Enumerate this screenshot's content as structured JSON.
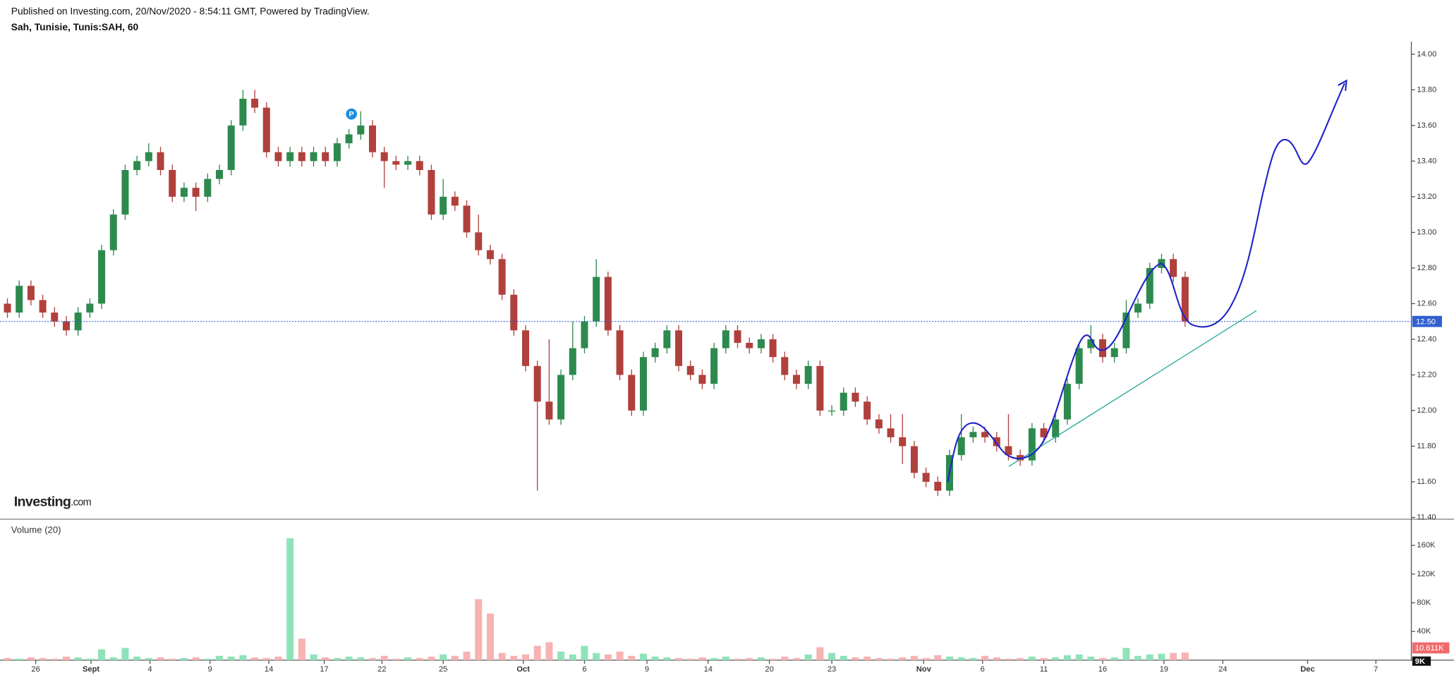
{
  "header": {
    "published": "Published on Investing.com, 20/Nov/2020 - 8:54:11 GMT, Powered by TradingView."
  },
  "watermark": {
    "brand": "Investing",
    "suffix": ".com"
  },
  "chart_data": [
    {
      "type": "candlestick",
      "title": "Sah, Tunisie, Tunis:SAH, 60",
      "up_color": "#2d8a4e",
      "down_color": "#b0403c",
      "marker_label": "P",
      "last_price": {
        "value": 12.5,
        "label": "12.50"
      },
      "last_price_color": "#2f5fd0",
      "open": [
        12.6,
        12.55,
        12.7,
        12.62,
        12.55,
        12.5,
        12.45,
        12.55,
        12.6,
        12.9,
        13.1,
        13.35,
        13.4,
        13.45,
        13.35,
        13.2,
        13.25,
        13.2,
        13.3,
        13.35,
        13.6,
        13.75,
        13.7,
        13.45,
        13.4,
        13.45,
        13.4,
        13.45,
        13.4,
        13.5,
        13.55,
        13.6,
        13.45,
        13.4,
        13.38,
        13.4,
        13.35,
        13.1,
        13.2,
        13.15,
        13.0,
        12.9,
        12.85,
        12.65,
        12.45,
        12.25,
        12.05,
        11.95,
        12.2,
        12.35,
        12.5,
        12.75,
        12.45,
        12.2,
        12.0,
        12.3,
        12.35,
        12.45,
        12.25,
        12.2,
        12.15,
        12.35,
        12.45,
        12.38,
        12.35,
        12.4,
        12.3,
        12.2,
        12.15,
        12.25,
        12.0,
        12.0,
        12.1,
        12.05,
        11.95,
        11.9,
        11.85,
        11.8,
        11.65,
        11.6,
        11.55,
        11.75,
        11.85,
        11.88,
        11.85,
        11.8,
        11.75,
        11.72,
        11.9,
        11.85,
        11.95,
        12.15,
        12.35,
        12.4,
        12.3,
        12.35,
        12.55,
        12.6,
        12.8,
        12.85,
        12.75
      ],
      "high": [
        12.63,
        12.73,
        12.73,
        12.65,
        12.58,
        12.53,
        12.58,
        12.63,
        12.93,
        13.13,
        13.38,
        13.43,
        13.5,
        13.48,
        13.38,
        13.28,
        13.28,
        13.33,
        13.38,
        13.63,
        13.8,
        13.8,
        13.73,
        13.48,
        13.48,
        13.48,
        13.48,
        13.48,
        13.53,
        13.58,
        13.68,
        13.63,
        13.48,
        13.43,
        13.43,
        13.43,
        13.38,
        13.3,
        13.23,
        13.18,
        13.1,
        12.93,
        12.88,
        12.68,
        12.48,
        12.28,
        12.4,
        12.23,
        12.5,
        12.53,
        12.85,
        12.78,
        12.48,
        12.23,
        12.33,
        12.38,
        12.48,
        12.48,
        12.28,
        12.23,
        12.38,
        12.48,
        12.48,
        12.41,
        12.43,
        12.43,
        12.33,
        12.23,
        12.28,
        12.28,
        12.03,
        12.13,
        12.13,
        12.08,
        11.98,
        11.98,
        11.98,
        11.83,
        11.68,
        11.63,
        11.78,
        11.98,
        11.91,
        11.91,
        11.88,
        11.98,
        11.78,
        11.93,
        11.93,
        11.98,
        12.18,
        12.38,
        12.48,
        12.43,
        12.38,
        12.62,
        12.63,
        12.83,
        12.88,
        12.88,
        12.78
      ],
      "low": [
        12.52,
        12.52,
        12.59,
        12.52,
        12.47,
        12.42,
        12.42,
        12.52,
        12.57,
        12.87,
        13.07,
        13.32,
        13.37,
        13.32,
        13.17,
        13.17,
        13.12,
        13.17,
        13.27,
        13.32,
        13.57,
        13.67,
        13.42,
        13.37,
        13.37,
        13.37,
        13.37,
        13.37,
        13.37,
        13.47,
        13.52,
        13.42,
        13.25,
        13.35,
        13.35,
        13.32,
        13.07,
        13.07,
        13.12,
        12.97,
        12.87,
        12.82,
        12.62,
        12.42,
        12.22,
        11.55,
        11.92,
        11.92,
        12.17,
        12.32,
        12.47,
        12.42,
        12.17,
        11.97,
        11.97,
        12.27,
        12.32,
        12.22,
        12.17,
        12.12,
        12.12,
        12.32,
        12.35,
        12.32,
        12.32,
        12.27,
        12.17,
        12.12,
        12.12,
        11.97,
        11.97,
        11.97,
        12.02,
        11.92,
        11.87,
        11.82,
        11.7,
        11.62,
        11.57,
        11.52,
        11.52,
        11.72,
        11.82,
        11.82,
        11.77,
        11.72,
        11.69,
        11.69,
        11.82,
        11.82,
        11.92,
        12.12,
        12.32,
        12.27,
        12.27,
        12.32,
        12.52,
        12.57,
        12.77,
        12.72,
        12.47
      ],
      "close": [
        12.55,
        12.7,
        12.62,
        12.55,
        12.5,
        12.45,
        12.55,
        12.6,
        12.9,
        13.1,
        13.35,
        13.4,
        13.45,
        13.35,
        13.2,
        13.25,
        13.2,
        13.3,
        13.35,
        13.6,
        13.75,
        13.7,
        13.45,
        13.4,
        13.45,
        13.4,
        13.45,
        13.4,
        13.5,
        13.55,
        13.6,
        13.45,
        13.4,
        13.38,
        13.4,
        13.35,
        13.1,
        13.2,
        13.15,
        13.0,
        12.9,
        12.85,
        12.65,
        12.45,
        12.25,
        12.05,
        11.95,
        12.2,
        12.35,
        12.5,
        12.75,
        12.45,
        12.2,
        12.0,
        12.3,
        12.35,
        12.45,
        12.25,
        12.2,
        12.15,
        12.35,
        12.45,
        12.38,
        12.35,
        12.4,
        12.3,
        12.2,
        12.15,
        12.25,
        12.0,
        12.0,
        12.1,
        12.05,
        11.95,
        11.9,
        11.85,
        11.8,
        11.65,
        11.6,
        11.55,
        11.75,
        11.85,
        11.88,
        11.85,
        11.8,
        11.75,
        11.72,
        11.9,
        11.85,
        11.95,
        12.15,
        12.35,
        12.4,
        12.3,
        12.35,
        12.55,
        12.6,
        12.8,
        12.85,
        12.75,
        12.5
      ],
      "ylim": [
        11.39,
        14.07
      ],
      "yticks": [
        {
          "value": 11.4,
          "label": "11.40"
        },
        {
          "value": 11.6,
          "label": "11.60"
        },
        {
          "value": 11.8,
          "label": "11.80"
        },
        {
          "value": 12.0,
          "label": "12.00"
        },
        {
          "value": 12.2,
          "label": "12.20"
        },
        {
          "value": 12.4,
          "label": "12.40"
        },
        {
          "value": 12.6,
          "label": "12.60"
        },
        {
          "value": 12.8,
          "label": "12.80"
        },
        {
          "value": 13.0,
          "label": "13.00"
        },
        {
          "value": 13.2,
          "label": "13.20"
        },
        {
          "value": 13.4,
          "label": "13.40"
        },
        {
          "value": 13.6,
          "label": "13.60"
        },
        {
          "value": 13.8,
          "label": "13.80"
        },
        {
          "value": 14.0,
          "label": "14.00"
        }
      ],
      "xlim": [
        -0.63,
        119.21
      ],
      "xticks": [
        {
          "value": 2.4,
          "label": "26"
        },
        {
          "value": 7.1,
          "label": "Sept"
        },
        {
          "value": 12.1,
          "label": "4"
        },
        {
          "value": 17.2,
          "label": "9"
        },
        {
          "value": 22.2,
          "label": "14"
        },
        {
          "value": 26.9,
          "label": "17"
        },
        {
          "value": 31.8,
          "label": "22"
        },
        {
          "value": 37.0,
          "label": "25"
        },
        {
          "value": 43.8,
          "label": "Oct"
        },
        {
          "value": 49.0,
          "label": "6"
        },
        {
          "value": 54.3,
          "label": "9"
        },
        {
          "value": 59.5,
          "label": "14"
        },
        {
          "value": 64.7,
          "label": "20"
        },
        {
          "value": 70.0,
          "label": "23"
        },
        {
          "value": 77.8,
          "label": "Nov"
        },
        {
          "value": 82.8,
          "label": "6"
        },
        {
          "value": 88.0,
          "label": "11"
        },
        {
          "value": 93.0,
          "label": "16"
        },
        {
          "value": 98.2,
          "label": "19"
        },
        {
          "value": 103.2,
          "label": "24"
        },
        {
          "value": 110.4,
          "label": "Dec"
        },
        {
          "value": 116.2,
          "label": "7"
        }
      ]
    },
    {
      "type": "bar",
      "title": "Volume (20)",
      "up_color": "#8fe3b8",
      "down_color": "#f7b2b2",
      "values": [
        3000,
        2000,
        4000,
        3000,
        2000,
        5000,
        4000,
        2000,
        15000,
        4000,
        17000,
        5000,
        3000,
        4000,
        2000,
        3000,
        4000,
        2000,
        6000,
        5000,
        7000,
        4000,
        3000,
        5000,
        170000,
        30000,
        8000,
        4000,
        3000,
        5000,
        4000,
        3000,
        6000,
        2000,
        4000,
        3000,
        5000,
        8000,
        6000,
        12000,
        85000,
        65000,
        10000,
        6000,
        8000,
        20000,
        25000,
        12000,
        8000,
        20000,
        10000,
        8000,
        12000,
        6000,
        9000,
        5000,
        4000,
        3000,
        2000,
        4000,
        3000,
        5000,
        2000,
        3000,
        4000,
        2000,
        5000,
        3000,
        8000,
        18000,
        10000,
        6000,
        4000,
        5000,
        3000,
        2000,
        4000,
        6000,
        3000,
        7000,
        5000,
        4000,
        3000,
        6000,
        4000,
        2000,
        3000,
        5000,
        3000,
        4000,
        7000,
        8000,
        5000,
        3000,
        4000,
        17000,
        6000,
        8000,
        9000,
        10000,
        10611
      ],
      "last_volume": {
        "value": 10611,
        "label": "10.611K"
      },
      "ma_last": {
        "value": 9000,
        "label": "9K"
      },
      "ylim": [
        0,
        190000
      ],
      "yticks": [
        {
          "value": 40000,
          "label": "40K"
        },
        {
          "value": 80000,
          "label": "80K"
        },
        {
          "value": 120000,
          "label": "120K"
        },
        {
          "value": 160000,
          "label": "160K"
        }
      ]
    }
  ]
}
